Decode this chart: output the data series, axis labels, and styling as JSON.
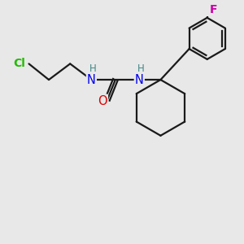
{
  "background_color": "#e8e8e8",
  "bond_color": "#1a1a1a",
  "figsize": [
    3.0,
    3.0
  ],
  "dpi": 100,
  "xlim": [
    -0.5,
    8.5
  ],
  "ylim": [
    1.0,
    9.0
  ],
  "Cl_color": "#22bb00",
  "N_color": "#0000ee",
  "H_color": "#408888",
  "O_color": "#dd0000",
  "F_color": "#cc00aa"
}
